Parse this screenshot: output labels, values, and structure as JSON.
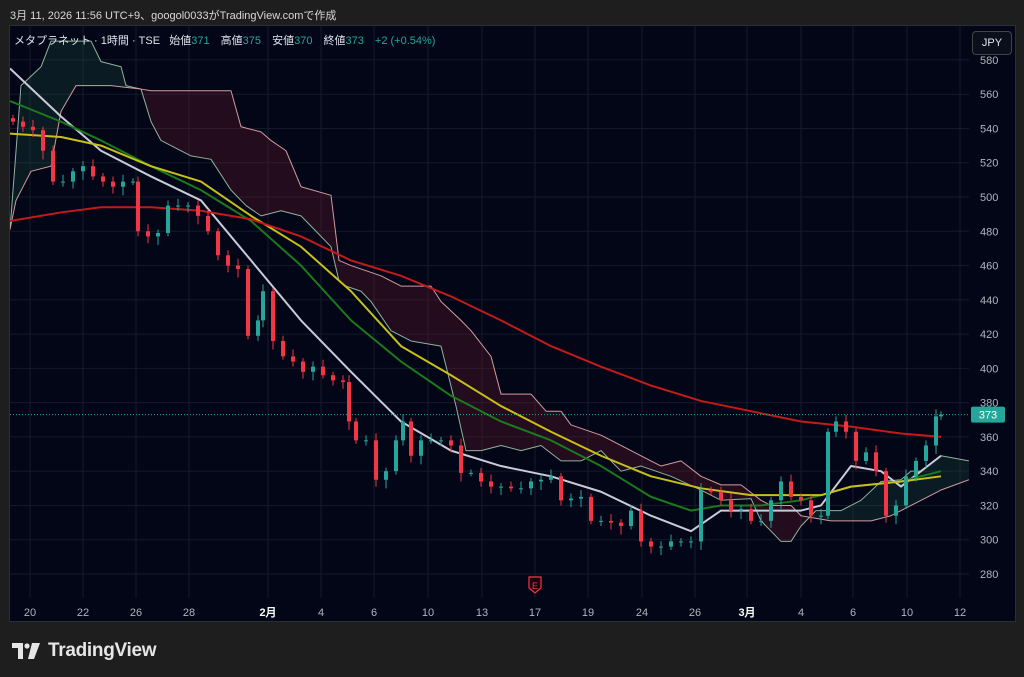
{
  "caption": "3月 11, 2026 11:56 UTC+9、googol0033がTradingView.comで作成",
  "legend": {
    "symbol": "メタプラネット · 1時間 · TSE",
    "open_label": "始値",
    "open": "371",
    "high_label": "高値",
    "high": "375",
    "low_label": "安値",
    "low": "370",
    "close_label": "終値",
    "close": "373",
    "change": "+2 (+0.54%)"
  },
  "currency_button": "JPY",
  "brand": "TradingView",
  "earnings_marker": "E",
  "colors": {
    "up": "#26a69a",
    "down": "#f23645",
    "ma_fast": "#c9cbd6",
    "ma_green": "#1b7a1b",
    "ma_yellow": "#c8c018",
    "ma_red": "#c41a1a",
    "span_a": "#8fb39a",
    "span_b": "#d49a9f",
    "cloud_up": "rgba(40,90,70,0.25)",
    "cloud_down": "rgba(120,30,50,0.28)",
    "last_price": "#26a69a"
  },
  "chart_data": {
    "type": "candlestick",
    "title": "メタプラネット · 1時間 · TSE",
    "ylim": [
      251.4,
      599.8
    ],
    "xlim": [
      0,
      95.9
    ],
    "y_ticks": [
      280,
      300,
      320,
      340,
      360,
      380,
      400,
      420,
      440,
      460,
      480,
      500,
      520,
      540,
      560,
      580
    ],
    "x_ticks": [
      {
        "t": 2,
        "label": "20"
      },
      {
        "t": 7.3,
        "label": "22"
      },
      {
        "t": 12.6,
        "label": "26"
      },
      {
        "t": 17.9,
        "label": "28"
      },
      {
        "t": 25.8,
        "label": "2月",
        "bold": true
      },
      {
        "t": 31.1,
        "label": "4"
      },
      {
        "t": 36.4,
        "label": "6"
      },
      {
        "t": 41.8,
        "label": "10"
      },
      {
        "t": 47.2,
        "label": "13"
      },
      {
        "t": 52.5,
        "label": "17"
      },
      {
        "t": 57.8,
        "label": "19"
      },
      {
        "t": 63.2,
        "label": "24"
      },
      {
        "t": 68.5,
        "label": "26"
      },
      {
        "t": 73.7,
        "label": "3月",
        "bold": true
      },
      {
        "t": 79.1,
        "label": "4"
      },
      {
        "t": 84.3,
        "label": "6"
      },
      {
        "t": 89.7,
        "label": "10"
      },
      {
        "t": 95,
        "label": "12"
      }
    ],
    "last_price": 373,
    "earnings_t": 52.5,
    "closes": [
      [
        0.3,
        544
      ],
      [
        1.3,
        541
      ],
      [
        2.3,
        539
      ],
      [
        3.3,
        527
      ],
      [
        4.3,
        509
      ],
      [
        5.3,
        509
      ],
      [
        6.3,
        515
      ],
      [
        7.3,
        518
      ],
      [
        8.3,
        512
      ],
      [
        9.3,
        509
      ],
      [
        10.3,
        506
      ],
      [
        11.3,
        509
      ],
      [
        12.3,
        509
      ],
      [
        12.8,
        480
      ],
      [
        13.8,
        477
      ],
      [
        14.8,
        479
      ],
      [
        15.8,
        495
      ],
      [
        16.8,
        495
      ],
      [
        17.8,
        495
      ],
      [
        18.8,
        489
      ],
      [
        19.8,
        480
      ],
      [
        20.8,
        466
      ],
      [
        21.8,
        460
      ],
      [
        22.8,
        458
      ],
      [
        23.8,
        419
      ],
      [
        24.8,
        428
      ],
      [
        25.3,
        445
      ],
      [
        26.3,
        416
      ],
      [
        27.3,
        407
      ],
      [
        28.3,
        404
      ],
      [
        29.3,
        398
      ],
      [
        30.3,
        401
      ],
      [
        31.3,
        396
      ],
      [
        32.3,
        393
      ],
      [
        33.3,
        392
      ],
      [
        33.9,
        369
      ],
      [
        34.6,
        358
      ],
      [
        35.6,
        358
      ],
      [
        36.6,
        335
      ],
      [
        37.6,
        340
      ],
      [
        38.6,
        358
      ],
      [
        39.3,
        369
      ],
      [
        40.1,
        349
      ],
      [
        41.1,
        358
      ],
      [
        42.1,
        358
      ],
      [
        43.1,
        358
      ],
      [
        44.1,
        355
      ],
      [
        45.1,
        339
      ],
      [
        46.1,
        339
      ],
      [
        47.1,
        334
      ],
      [
        48.1,
        331
      ],
      [
        49.1,
        331
      ],
      [
        50.1,
        330
      ],
      [
        51.1,
        330
      ],
      [
        52.1,
        334
      ],
      [
        53.1,
        335
      ],
      [
        54.1,
        337
      ],
      [
        55.1,
        323
      ],
      [
        56.1,
        324
      ],
      [
        57.1,
        325
      ],
      [
        58.1,
        311
      ],
      [
        59.1,
        311
      ],
      [
        60.1,
        310
      ],
      [
        61.1,
        308
      ],
      [
        62.1,
        317
      ],
      [
        63.1,
        299
      ],
      [
        64.1,
        296
      ],
      [
        65.1,
        296
      ],
      [
        66.1,
        299
      ],
      [
        67.1,
        299
      ],
      [
        68.1,
        299
      ],
      [
        69.1,
        329
      ],
      [
        70.1,
        328
      ],
      [
        71.1,
        323
      ],
      [
        72.1,
        317
      ],
      [
        73.1,
        318
      ],
      [
        74.1,
        311
      ],
      [
        75.1,
        311
      ],
      [
        76.1,
        323
      ],
      [
        77.1,
        334
      ],
      [
        78.1,
        325
      ],
      [
        79.1,
        323
      ],
      [
        80.1,
        314
      ],
      [
        81.1,
        314
      ],
      [
        81.8,
        363
      ],
      [
        82.6,
        369
      ],
      [
        83.6,
        363
      ],
      [
        84.6,
        346
      ],
      [
        85.6,
        351
      ],
      [
        86.6,
        340
      ],
      [
        87.6,
        314
      ],
      [
        88.6,
        320
      ],
      [
        89.6,
        337
      ],
      [
        90.6,
        346
      ],
      [
        91.6,
        355
      ],
      [
        92.6,
        372
      ],
      [
        93.1,
        373
      ]
    ],
    "series": [
      {
        "name": "MA fast",
        "color_key": "ma_fast",
        "points": [
          [
            0,
            575
          ],
          [
            5.1,
            547
          ],
          [
            9.1,
            527
          ],
          [
            14.1,
            512
          ],
          [
            19.1,
            498
          ],
          [
            24.1,
            463
          ],
          [
            29.1,
            428
          ],
          [
            34.1,
            398
          ],
          [
            39.1,
            369
          ],
          [
            44.1,
            352
          ],
          [
            49.1,
            343
          ],
          [
            54.1,
            337
          ],
          [
            59.1,
            328
          ],
          [
            64.1,
            314
          ],
          [
            68.1,
            305
          ],
          [
            71.1,
            317
          ],
          [
            75.1,
            317
          ],
          [
            79.1,
            317
          ],
          [
            81.1,
            320
          ],
          [
            84.1,
            343
          ],
          [
            87.1,
            340
          ],
          [
            89.1,
            331
          ],
          [
            93.1,
            349
          ]
        ]
      },
      {
        "name": "MA green",
        "color_key": "ma_green",
        "points": [
          [
            0,
            556
          ],
          [
            5.1,
            544
          ],
          [
            9.1,
            533
          ],
          [
            14.1,
            518
          ],
          [
            19.1,
            504
          ],
          [
            24.1,
            486
          ],
          [
            29.1,
            460
          ],
          [
            34.1,
            428
          ],
          [
            39.1,
            404
          ],
          [
            44.1,
            384
          ],
          [
            49.1,
            369
          ],
          [
            54.1,
            358
          ],
          [
            59.1,
            343
          ],
          [
            64.1,
            325
          ],
          [
            68.1,
            317
          ],
          [
            71.1,
            320
          ],
          [
            75.1,
            320
          ],
          [
            79.1,
            323
          ],
          [
            81.1,
            326
          ],
          [
            84.1,
            331
          ],
          [
            89.1,
            334
          ],
          [
            93.1,
            340
          ]
        ]
      },
      {
        "name": "MA yellow",
        "color_key": "ma_yellow",
        "points": [
          [
            0,
            537
          ],
          [
            5.1,
            535
          ],
          [
            9.1,
            530
          ],
          [
            14.1,
            518
          ],
          [
            19.1,
            509
          ],
          [
            24.1,
            489
          ],
          [
            29.1,
            471
          ],
          [
            34.1,
            445
          ],
          [
            39.1,
            413
          ],
          [
            44.1,
            396
          ],
          [
            49.1,
            378
          ],
          [
            54.1,
            363
          ],
          [
            59.1,
            349
          ],
          [
            64.1,
            337
          ],
          [
            69.1,
            330
          ],
          [
            74.1,
            326
          ],
          [
            79.1,
            326
          ],
          [
            81.1,
            326
          ],
          [
            84.1,
            331
          ],
          [
            89.1,
            334
          ],
          [
            93.1,
            337
          ]
        ]
      },
      {
        "name": "MA red",
        "color_key": "ma_red",
        "points": [
          [
            0,
            486
          ],
          [
            5.1,
            491
          ],
          [
            9.1,
            494
          ],
          [
            14.1,
            494
          ],
          [
            19.1,
            492
          ],
          [
            24.1,
            487
          ],
          [
            29.1,
            477
          ],
          [
            34.1,
            463
          ],
          [
            39.1,
            454
          ],
          [
            44.1,
            442
          ],
          [
            49.1,
            428
          ],
          [
            54.1,
            413
          ],
          [
            59.1,
            401
          ],
          [
            64.1,
            390
          ],
          [
            69.1,
            381
          ],
          [
            74.1,
            375
          ],
          [
            79.1,
            369
          ],
          [
            84.1,
            366
          ],
          [
            89.1,
            362
          ],
          [
            93.1,
            360
          ]
        ]
      }
    ],
    "cloud": {
      "span_a": [
        [
          0,
          481
        ],
        [
          1.1,
          565
        ],
        [
          3.1,
          576
        ],
        [
          4.1,
          591
        ],
        [
          8.1,
          591
        ],
        [
          9.1,
          579
        ],
        [
          11.1,
          576
        ],
        [
          11.6,
          565
        ],
        [
          13.1,
          563
        ],
        [
          14.1,
          544
        ],
        [
          15.1,
          533
        ],
        [
          18.1,
          524
        ],
        [
          20.1,
          522
        ],
        [
          22.1,
          504
        ],
        [
          23.6,
          495
        ],
        [
          25.1,
          489
        ],
        [
          27.1,
          492
        ],
        [
          29.1,
          489
        ],
        [
          30.6,
          480
        ],
        [
          32.1,
          471
        ],
        [
          32.9,
          451
        ],
        [
          33.6,
          448
        ],
        [
          35.1,
          445
        ],
        [
          36.1,
          439
        ],
        [
          38.1,
          422
        ],
        [
          40.1,
          416
        ],
        [
          43.1,
          413
        ],
        [
          44.6,
          378
        ],
        [
          45.6,
          352
        ],
        [
          47.1,
          352
        ],
        [
          49.1,
          355
        ],
        [
          51.1,
          352
        ],
        [
          53.1,
          355
        ],
        [
          55.1,
          346
        ],
        [
          57.1,
          346
        ],
        [
          59.1,
          352
        ],
        [
          61.1,
          340
        ],
        [
          63.1,
          343
        ],
        [
          66.1,
          337
        ],
        [
          69.1,
          329
        ],
        [
          71.1,
          323
        ],
        [
          74.1,
          324
        ],
        [
          75.1,
          311
        ],
        [
          77.1,
          299
        ],
        [
          78.1,
          299
        ],
        [
          79.1,
          308
        ],
        [
          80.6,
          317
        ],
        [
          83.1,
          317
        ],
        [
          85.1,
          323
        ],
        [
          87.1,
          334
        ],
        [
          89.1,
          335
        ],
        [
          90.1,
          340
        ],
        [
          91.1,
          340
        ],
        [
          93.1,
          349
        ],
        [
          95.9,
          346
        ]
      ],
      "span_b": [
        [
          0,
          481
        ],
        [
          0.6,
          498
        ],
        [
          2.1,
          515
        ],
        [
          4.1,
          518
        ],
        [
          5.1,
          550
        ],
        [
          6.6,
          565
        ],
        [
          10.1,
          565
        ],
        [
          13.1,
          563
        ],
        [
          14.1,
          562
        ],
        [
          22.1,
          562
        ],
        [
          23.1,
          541
        ],
        [
          25.1,
          538
        ],
        [
          26.1,
          533
        ],
        [
          27.6,
          527
        ],
        [
          29.1,
          506
        ],
        [
          32.1,
          501
        ],
        [
          32.9,
          463
        ],
        [
          34.1,
          460
        ],
        [
          37.1,
          454
        ],
        [
          39.1,
          448
        ],
        [
          42.1,
          448
        ],
        [
          43.1,
          439
        ],
        [
          45.1,
          428
        ],
        [
          46.1,
          422
        ],
        [
          48.1,
          407
        ],
        [
          49.1,
          385
        ],
        [
          52.1,
          385
        ],
        [
          53.6,
          375
        ],
        [
          55.1,
          375
        ],
        [
          56.1,
          367
        ],
        [
          59.1,
          361
        ],
        [
          61.1,
          355
        ],
        [
          63.1,
          349
        ],
        [
          65.1,
          343
        ],
        [
          67.1,
          346
        ],
        [
          69.1,
          337
        ],
        [
          71.1,
          332
        ],
        [
          73.1,
          332
        ],
        [
          75.1,
          323
        ],
        [
          76.1,
          320
        ],
        [
          78.1,
          320
        ],
        [
          79.1,
          314
        ],
        [
          82.1,
          311
        ],
        [
          86.1,
          311
        ],
        [
          88.1,
          314
        ],
        [
          93.1,
          329
        ],
        [
          95.9,
          335
        ]
      ]
    }
  }
}
